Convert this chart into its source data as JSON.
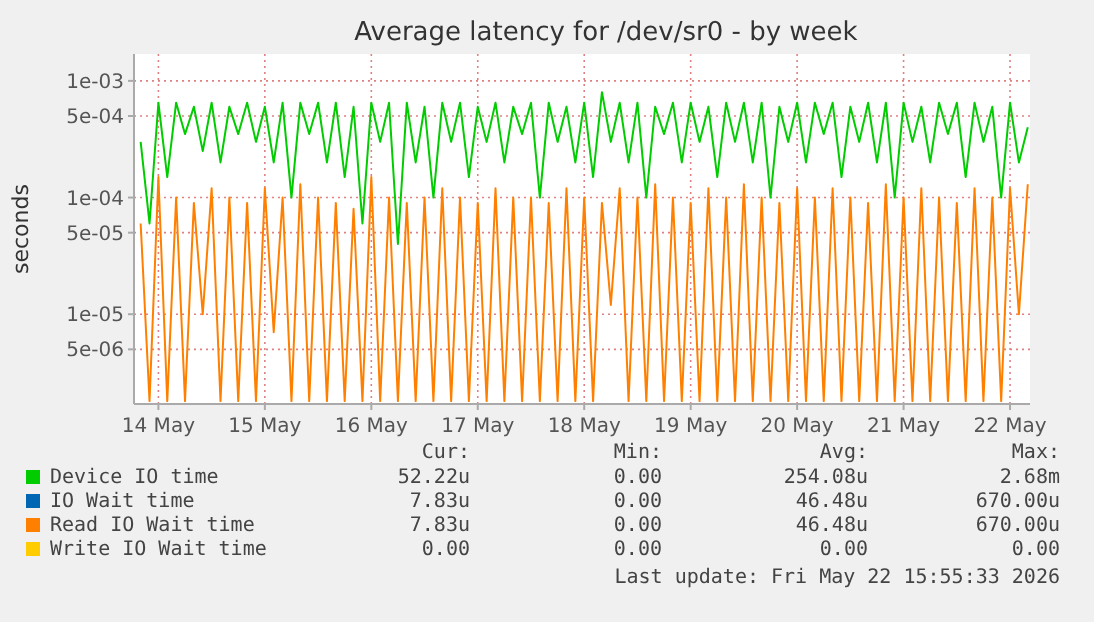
{
  "chart_data": {
    "type": "line",
    "title": "Average latency for /dev/sr0 - by week",
    "ylabel": "seconds",
    "log": "y",
    "grid": true,
    "legend": "bottom",
    "xlim": [
      "2026-05-13T18:30",
      "2026-05-22T04:30"
    ],
    "xticks": [
      {
        "value": "2026-05-14",
        "label": "14 May"
      },
      {
        "value": "2026-05-15",
        "label": "15 May"
      },
      {
        "value": "2026-05-16",
        "label": "16 May"
      },
      {
        "value": "2026-05-17",
        "label": "17 May"
      },
      {
        "value": "2026-05-18",
        "label": "18 May"
      },
      {
        "value": "2026-05-19",
        "label": "19 May"
      },
      {
        "value": "2026-05-20",
        "label": "20 May"
      },
      {
        "value": "2026-05-21",
        "label": "21 May"
      },
      {
        "value": "2026-05-22",
        "label": "22 May"
      }
    ],
    "ylim": [
      1.7e-06,
      0.0017
    ],
    "yticks": [
      {
        "value": 5e-06,
        "label": "5e-06"
      },
      {
        "value": 1e-05,
        "label": "1e-05"
      },
      {
        "value": 5e-05,
        "label": "5e-05"
      },
      {
        "value": 0.0001,
        "label": "1e-04"
      },
      {
        "value": 0.0005,
        "label": "5e-04"
      },
      {
        "value": 0.001,
        "label": "1e-03"
      }
    ],
    "x": [
      "2026-05-13T20:00",
      "2026-05-13T22:00",
      "2026-05-14T00:00",
      "2026-05-14T02:00",
      "2026-05-14T04:00",
      "2026-05-14T06:00",
      "2026-05-14T08:00",
      "2026-05-14T10:00",
      "2026-05-14T12:00",
      "2026-05-14T14:00",
      "2026-05-14T16:00",
      "2026-05-14T18:00",
      "2026-05-14T20:00",
      "2026-05-14T22:00",
      "2026-05-15T00:00",
      "2026-05-15T02:00",
      "2026-05-15T04:00",
      "2026-05-15T06:00",
      "2026-05-15T08:00",
      "2026-05-15T10:00",
      "2026-05-15T12:00",
      "2026-05-15T14:00",
      "2026-05-15T16:00",
      "2026-05-15T18:00",
      "2026-05-15T20:00",
      "2026-05-15T22:00",
      "2026-05-16T00:00",
      "2026-05-16T02:00",
      "2026-05-16T04:00",
      "2026-05-16T06:00",
      "2026-05-16T08:00",
      "2026-05-16T10:00",
      "2026-05-16T12:00",
      "2026-05-16T14:00",
      "2026-05-16T16:00",
      "2026-05-16T18:00",
      "2026-05-16T20:00",
      "2026-05-16T22:00",
      "2026-05-17T00:00",
      "2026-05-17T02:00",
      "2026-05-17T04:00",
      "2026-05-17T06:00",
      "2026-05-17T08:00",
      "2026-05-17T10:00",
      "2026-05-17T12:00",
      "2026-05-17T14:00",
      "2026-05-17T16:00",
      "2026-05-17T18:00",
      "2026-05-17T20:00",
      "2026-05-17T22:00",
      "2026-05-18T00:00",
      "2026-05-18T02:00",
      "2026-05-18T04:00",
      "2026-05-18T06:00",
      "2026-05-18T08:00",
      "2026-05-18T10:00",
      "2026-05-18T12:00",
      "2026-05-18T14:00",
      "2026-05-18T16:00",
      "2026-05-18T18:00",
      "2026-05-18T20:00",
      "2026-05-18T22:00",
      "2026-05-19T00:00",
      "2026-05-19T02:00",
      "2026-05-19T04:00",
      "2026-05-19T06:00",
      "2026-05-19T08:00",
      "2026-05-19T10:00",
      "2026-05-19T12:00",
      "2026-05-19T14:00",
      "2026-05-19T16:00",
      "2026-05-19T18:00",
      "2026-05-19T20:00",
      "2026-05-19T22:00",
      "2026-05-20T00:00",
      "2026-05-20T02:00",
      "2026-05-20T04:00",
      "2026-05-20T06:00",
      "2026-05-20T08:00",
      "2026-05-20T10:00",
      "2026-05-20T12:00",
      "2026-05-20T14:00",
      "2026-05-20T16:00",
      "2026-05-20T18:00",
      "2026-05-20T20:00",
      "2026-05-20T22:00",
      "2026-05-21T00:00",
      "2026-05-21T02:00",
      "2026-05-21T04:00",
      "2026-05-21T06:00",
      "2026-05-21T08:00",
      "2026-05-21T10:00",
      "2026-05-21T12:00",
      "2026-05-21T14:00",
      "2026-05-21T16:00",
      "2026-05-21T18:00",
      "2026-05-21T20:00",
      "2026-05-21T22:00",
      "2026-05-22T00:00",
      "2026-05-22T02:00",
      "2026-05-22T04:00"
    ],
    "series": [
      {
        "name": "Device IO time",
        "color": "#00cc00",
        "values": [
          0.0003,
          6e-05,
          0.00065,
          0.00015,
          0.00065,
          0.00035,
          0.0006,
          0.00025,
          0.00065,
          0.0002,
          0.0006,
          0.00035,
          0.00065,
          0.0003,
          0.0006,
          0.0002,
          0.00065,
          0.0001,
          0.00065,
          0.00035,
          0.00065,
          0.0002,
          0.00065,
          0.00015,
          0.0006,
          6e-05,
          0.00065,
          0.0003,
          0.00065,
          4e-05,
          0.00065,
          0.0002,
          0.0006,
          0.0001,
          0.00065,
          0.0003,
          0.00065,
          0.00015,
          0.0006,
          0.0003,
          0.00065,
          0.0002,
          0.0006,
          0.00035,
          0.00065,
          0.0001,
          0.00065,
          0.0003,
          0.0006,
          0.0002,
          0.00065,
          0.00015,
          0.0008,
          0.0003,
          0.00065,
          0.0002,
          0.00065,
          0.0001,
          0.0006,
          0.00035,
          0.00065,
          0.0002,
          0.00065,
          0.0003,
          0.0006,
          0.00015,
          0.00065,
          0.0003,
          0.00065,
          0.0002,
          0.00065,
          0.0001,
          0.0006,
          0.0003,
          0.00065,
          0.0002,
          0.00065,
          0.00035,
          0.00065,
          0.00015,
          0.0006,
          0.0003,
          0.00065,
          0.0002,
          0.00065,
          0.0001,
          0.00065,
          0.0003,
          0.0006,
          0.0002,
          0.00065,
          0.00035,
          0.00065,
          0.00015,
          0.00065,
          0.0003,
          0.0006,
          0.0001,
          0.00065,
          0.0002,
          0.0004
        ]
      },
      {
        "name": "IO Wait time",
        "color": "#0066b3",
        "values": [
          null,
          null,
          null,
          null,
          null,
          null,
          null,
          null,
          null,
          null,
          null,
          null,
          null,
          null,
          null,
          null,
          null,
          null,
          null,
          null,
          null,
          null,
          null,
          null,
          null,
          null,
          null,
          null,
          null,
          null,
          null,
          null,
          null,
          null,
          null,
          null,
          null,
          null,
          null,
          null,
          null,
          null,
          null,
          null,
          null,
          null,
          null,
          null,
          null,
          null,
          null,
          null,
          null,
          null,
          null,
          null,
          null,
          null,
          null,
          null,
          null,
          null,
          null,
          null,
          null,
          null,
          null,
          null,
          null,
          null,
          null,
          null,
          null,
          null,
          null,
          null,
          null,
          null,
          null,
          null,
          null,
          null,
          null,
          null,
          null,
          null,
          null,
          null,
          null,
          null,
          null,
          null,
          null,
          null,
          null,
          null,
          null,
          null,
          null,
          null,
          null
        ]
      },
      {
        "name": "Read IO Wait time",
        "color": "#ff8000",
        "values": [
          6e-05,
          1.8e-06,
          0.00015,
          1.8e-06,
          0.0001,
          1.8e-06,
          9e-05,
          1e-05,
          0.00012,
          1.8e-06,
          0.0001,
          1.8e-06,
          9e-05,
          1.8e-06,
          0.00012,
          7e-06,
          0.0001,
          1.8e-06,
          0.00013,
          1.8e-06,
          0.0001,
          1.8e-06,
          9e-05,
          1.8e-06,
          8e-05,
          1.8e-06,
          0.00015,
          1.8e-06,
          0.0001,
          1.8e-06,
          9e-05,
          1.8e-06,
          0.0001,
          1.8e-06,
          0.00012,
          1.8e-06,
          0.0001,
          1.8e-06,
          9e-05,
          1.8e-06,
          0.00012,
          1.8e-06,
          0.0001,
          1.8e-06,
          0.0001,
          1.8e-06,
          9e-05,
          1.8e-06,
          0.00012,
          1.8e-06,
          0.0001,
          1.8e-06,
          9e-05,
          1.2e-05,
          0.00012,
          1.8e-06,
          0.0001,
          1.8e-06,
          0.00013,
          1.8e-06,
          0.0001,
          1.8e-06,
          9e-05,
          1.8e-06,
          0.00012,
          1.8e-06,
          0.0001,
          1.8e-06,
          0.00013,
          1.8e-06,
          0.0001,
          1.8e-06,
          9e-05,
          1.8e-06,
          0.00012,
          1.8e-06,
          0.0001,
          1.8e-06,
          0.00012,
          1.8e-06,
          0.0001,
          1.8e-06,
          9e-05,
          1.8e-06,
          0.00013,
          1.8e-06,
          0.0001,
          1.8e-06,
          0.00012,
          1.8e-06,
          0.0001,
          1.8e-06,
          9e-05,
          1.8e-06,
          0.00012,
          1.8e-06,
          0.0001,
          1.8e-06,
          0.00012,
          1e-05,
          0.00013
        ]
      },
      {
        "name": "Write IO Wait time",
        "color": "#ffcc00",
        "values": [
          null,
          null,
          null,
          null,
          null,
          null,
          null,
          null,
          null,
          null,
          null,
          null,
          null,
          null,
          null,
          null,
          null,
          null,
          null,
          null,
          null,
          null,
          null,
          null,
          null,
          null,
          null,
          null,
          null,
          null,
          null,
          null,
          null,
          null,
          null,
          null,
          null,
          null,
          null,
          null,
          null,
          null,
          null,
          null,
          null,
          null,
          null,
          null,
          null,
          null,
          null,
          null,
          null,
          null,
          null,
          null,
          null,
          null,
          null,
          null,
          null,
          null,
          null,
          null,
          null,
          null,
          null,
          null,
          null,
          null,
          null,
          null,
          null,
          null,
          null,
          null,
          null,
          null,
          null,
          null,
          null,
          null,
          null,
          null,
          null,
          null,
          null,
          null,
          null,
          null,
          null,
          null,
          null,
          null,
          null,
          null,
          null,
          null,
          null,
          null,
          null
        ]
      }
    ],
    "annotations": [
      "Cur:",
      "Min:",
      "Avg:",
      "Max:",
      "52.22u",
      "0.00",
      "254.08u",
      "2.68m",
      "7.83u",
      "0.00",
      "46.48u",
      "670.00u",
      "7.83u",
      "0.00",
      "46.48u",
      "670.00u",
      "0.00",
      "0.00",
      "0.00",
      "0.00",
      "Last update: Fri May 22 15:55:33 2026"
    ]
  }
}
